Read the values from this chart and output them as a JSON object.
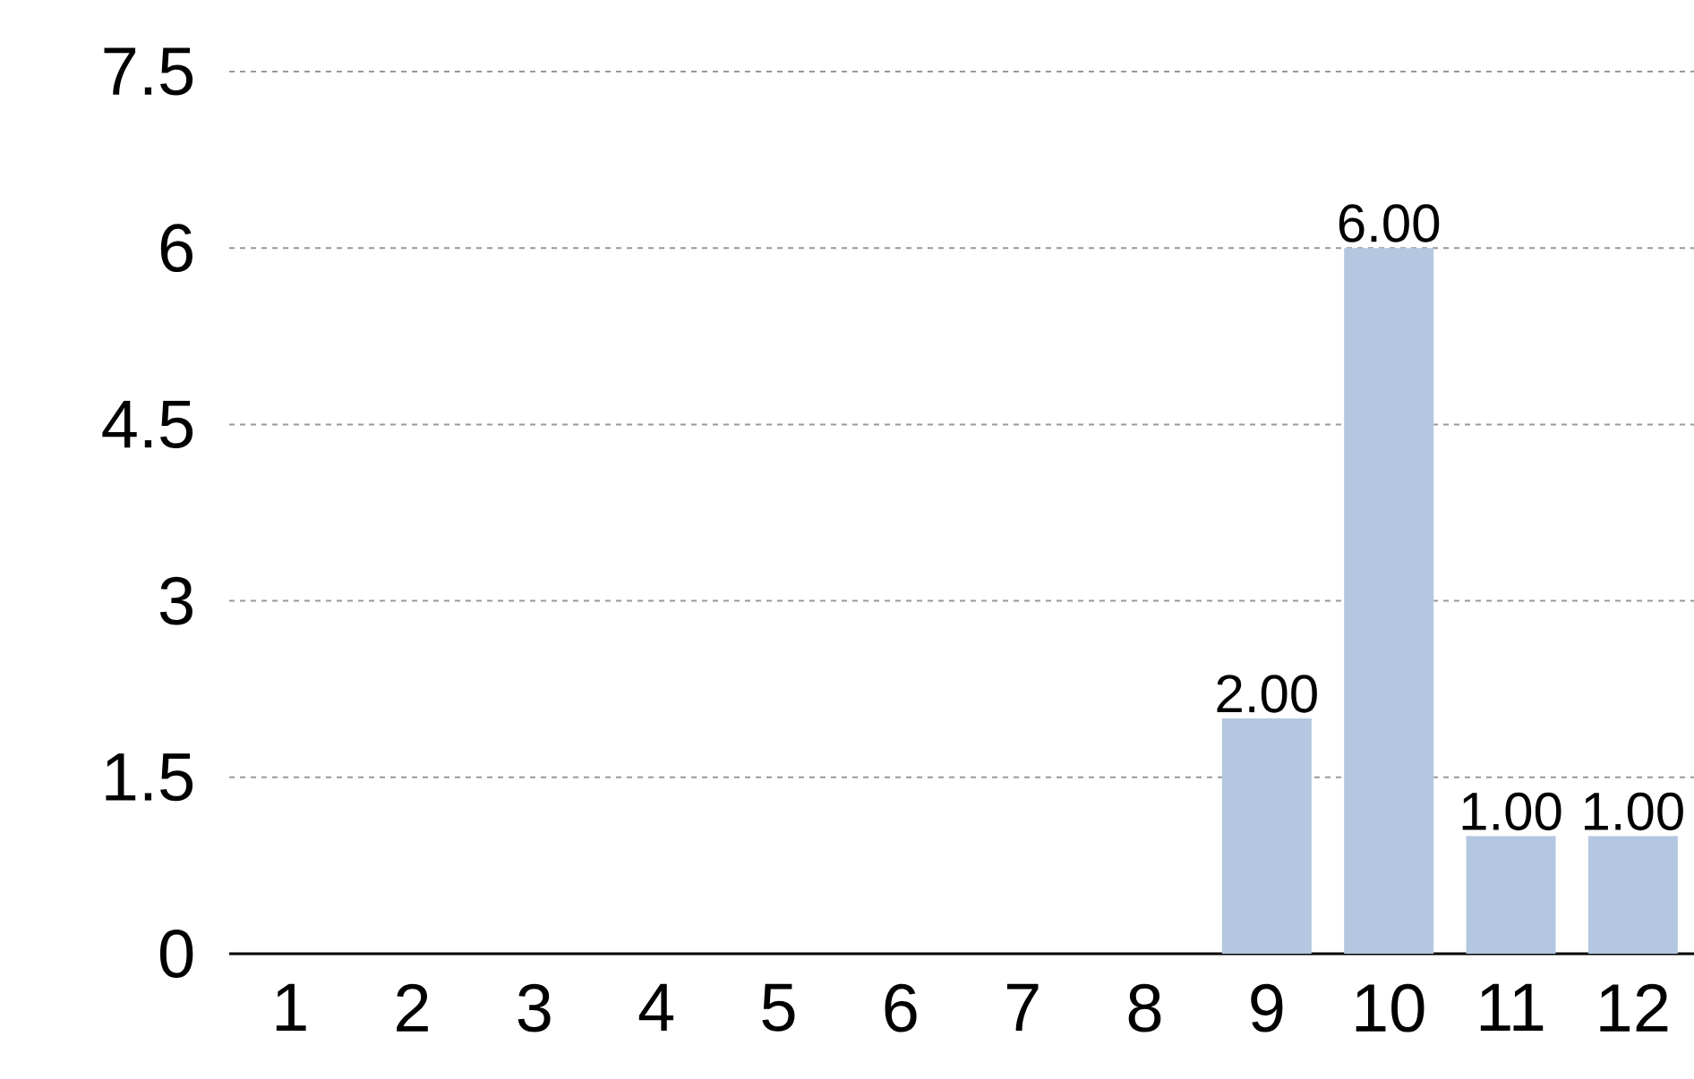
{
  "chart_data": {
    "type": "bar",
    "categories": [
      "1",
      "2",
      "3",
      "4",
      "5",
      "6",
      "7",
      "8",
      "9",
      "10",
      "11",
      "12"
    ],
    "values": [
      0,
      0,
      0,
      0,
      0,
      0,
      0,
      0,
      2,
      6,
      1,
      1
    ],
    "color": "#b3c7e0",
    "value_labels": [
      null,
      null,
      null,
      null,
      null,
      null,
      null,
      null,
      "2.00",
      "6.00",
      "1.00",
      "1.00"
    ],
    "ylim": [
      0,
      7.5
    ],
    "yticks": [
      0,
      1.5,
      3,
      4.5,
      6,
      7.5
    ],
    "grid": "y"
  }
}
